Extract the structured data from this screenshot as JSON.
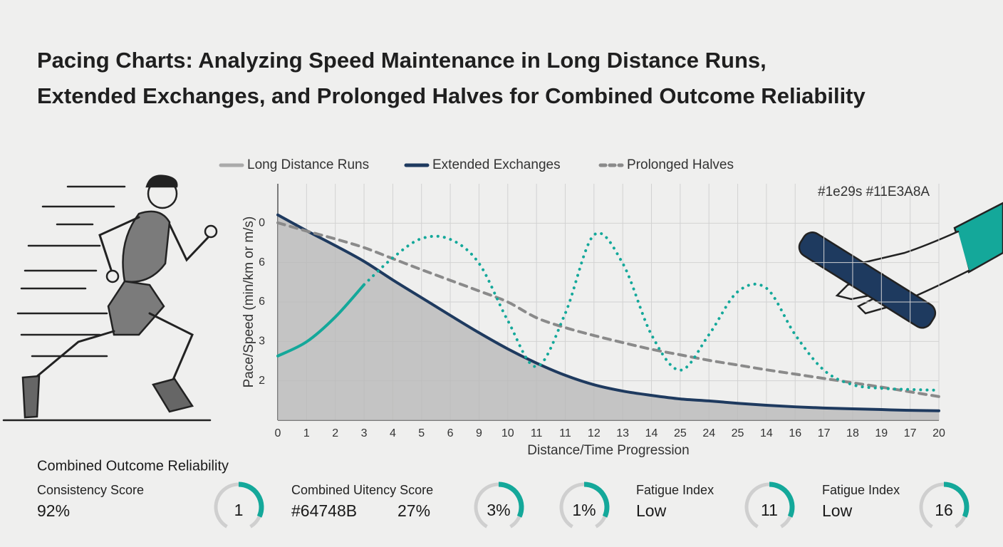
{
  "header": {
    "title": [
      "Pacing Charts: Analyzing Speed Maintenance in Long Distance Runs,",
      "Extended Exchanges, and Prolonged Halves for Combined Outcome Reliability"
    ]
  },
  "chart_data": {
    "type": "line",
    "x_label": "Distance/Time Progression",
    "y_label": "Pace/Speed (min/km or m/s)",
    "annotation": "#1e29s #11E3A8A",
    "categories": [
      "0",
      "1",
      "2",
      "3",
      "4",
      "5",
      "6",
      "9",
      "10",
      "11",
      "11",
      "12",
      "13",
      "14",
      "25",
      "24",
      "25",
      "14",
      "16",
      "17",
      "18",
      "19",
      "17",
      "20"
    ],
    "ylim": [
      0,
      6
    ],
    "yticks": [
      {
        "value": 5,
        "label": "0"
      },
      {
        "value": 4,
        "label": "6"
      },
      {
        "value": 3,
        "label": "6"
      },
      {
        "value": 2,
        "label": "3"
      },
      {
        "value": 1,
        "label": "2"
      }
    ],
    "grid": true,
    "series": [
      {
        "name": "Long Distance Runs",
        "color": "#b9b9b9",
        "style": "area",
        "values": [
          5.21,
          4.81,
          4.43,
          4.03,
          3.56,
          3.11,
          2.66,
          2.22,
          1.81,
          1.45,
          1.14,
          0.9,
          0.74,
          0.63,
          0.54,
          0.49,
          0.43,
          0.38,
          0.34,
          0.31,
          0.29,
          0.27,
          0.25,
          0.24
        ]
      },
      {
        "name": "Extended Exchanges",
        "color": "#1e3a5f",
        "style": "solid",
        "values": [
          5.21,
          4.81,
          4.43,
          4.03,
          3.56,
          3.11,
          2.66,
          2.22,
          1.81,
          1.45,
          1.14,
          0.9,
          0.74,
          0.63,
          0.54,
          0.49,
          0.43,
          0.38,
          0.34,
          0.31,
          0.29,
          0.27,
          0.25,
          0.24
        ]
      },
      {
        "name": "Prolonged Halves",
        "color": "#8a8a8a",
        "style": "dashed",
        "values": [
          5.01,
          4.8,
          4.6,
          4.38,
          4.1,
          3.82,
          3.55,
          3.28,
          3.0,
          2.6,
          2.35,
          2.15,
          1.97,
          1.8,
          1.66,
          1.52,
          1.4,
          1.28,
          1.17,
          1.06,
          0.95,
          0.84,
          0.72,
          0.6
        ]
      },
      {
        "color": "#14a89a",
        "style": "dotted",
        "values": [
          1.63,
          1.99,
          2.62,
          3.44,
          4.12,
          4.61,
          4.59,
          3.98,
          2.53,
          1.36,
          2.71,
          4.7,
          3.98,
          2.17,
          1.27,
          2.17,
          3.26,
          3.35,
          2.17,
          1.27,
          0.9,
          0.81,
          0.78,
          0.76
        ]
      }
    ]
  },
  "metrics": {
    "title": "Combined Outcome Reliability",
    "items": [
      {
        "label": "Consistency Score",
        "value": "92%",
        "gauge": "1"
      },
      {
        "label": "Combined Uitency Score",
        "value": "#64748B",
        "extra": "27%",
        "gauge": "3%"
      },
      {
        "gauge": "1%"
      },
      {
        "label": "Fatigue Index",
        "value": "Low",
        "gauge": "11"
      },
      {
        "label": "Fatigue Index",
        "value": "Low",
        "gauge": "16"
      }
    ]
  }
}
